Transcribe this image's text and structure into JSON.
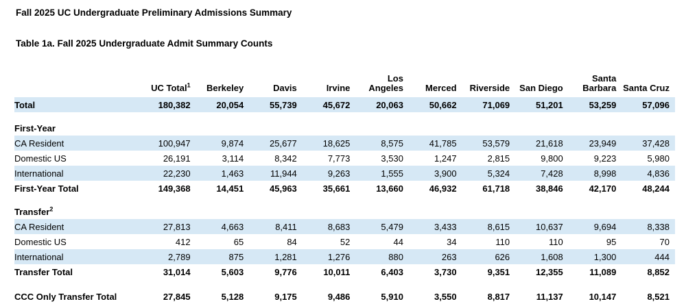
{
  "page": {
    "title": "Fall 2025 UC Undergraduate Preliminary Admissions Summary",
    "table_caption": "Table 1a. Fall 2025 Undergraduate Admit Summary Counts"
  },
  "colors": {
    "stripe_blue": "#d6e8f5",
    "text": "#000000",
    "background": "#ffffff"
  },
  "table": {
    "row_label_header": "",
    "columns": [
      {
        "label": "UC Total",
        "superscript": "1"
      },
      {
        "label": "Berkeley",
        "superscript": ""
      },
      {
        "label": "Davis",
        "superscript": ""
      },
      {
        "label": "Irvine",
        "superscript": ""
      },
      {
        "label": "Los Angeles",
        "superscript": ""
      },
      {
        "label": "Merced",
        "superscript": ""
      },
      {
        "label": "Riverside",
        "superscript": ""
      },
      {
        "label": "San Diego",
        "superscript": ""
      },
      {
        "label": "Santa Barbara",
        "superscript": ""
      },
      {
        "label": "Santa Cruz",
        "superscript": ""
      }
    ],
    "rows": [
      {
        "type": "data",
        "emphasis": "bold",
        "indent": 0,
        "stripe": true,
        "label": "Total",
        "superscript": "",
        "values": [
          "180,382",
          "20,054",
          "55,739",
          "45,672",
          "20,063",
          "50,662",
          "71,069",
          "51,201",
          "53,259",
          "57,096"
        ]
      },
      {
        "type": "spacer"
      },
      {
        "type": "section",
        "label": "First-Year",
        "superscript": ""
      },
      {
        "type": "data",
        "emphasis": "normal",
        "indent": 1,
        "stripe": true,
        "label": "CA Resident",
        "superscript": "",
        "values": [
          "100,947",
          "9,874",
          "25,677",
          "18,625",
          "8,575",
          "41,785",
          "53,579",
          "21,618",
          "23,949",
          "37,428"
        ]
      },
      {
        "type": "data",
        "emphasis": "normal",
        "indent": 1,
        "stripe": false,
        "label": "Domestic US",
        "superscript": "",
        "values": [
          "26,191",
          "3,114",
          "8,342",
          "7,773",
          "3,530",
          "1,247",
          "2,815",
          "9,800",
          "9,223",
          "5,980"
        ]
      },
      {
        "type": "data",
        "emphasis": "normal",
        "indent": 1,
        "stripe": true,
        "label": "International",
        "superscript": "",
        "values": [
          "22,230",
          "1,463",
          "11,944",
          "9,263",
          "1,555",
          "3,900",
          "5,324",
          "7,428",
          "8,998",
          "4,836"
        ]
      },
      {
        "type": "data",
        "emphasis": "bold",
        "indent": 2,
        "stripe": false,
        "label": "First-Year Total",
        "superscript": "",
        "values": [
          "149,368",
          "14,451",
          "45,963",
          "35,661",
          "13,660",
          "46,932",
          "61,718",
          "38,846",
          "42,170",
          "48,244"
        ]
      },
      {
        "type": "spacer"
      },
      {
        "type": "section",
        "label": "Transfer",
        "superscript": "2"
      },
      {
        "type": "data",
        "emphasis": "normal",
        "indent": 1,
        "stripe": true,
        "label": "CA Resident",
        "superscript": "",
        "values": [
          "27,813",
          "4,663",
          "8,411",
          "8,683",
          "5,479",
          "3,433",
          "8,615",
          "10,637",
          "9,694",
          "8,338"
        ]
      },
      {
        "type": "data",
        "emphasis": "normal",
        "indent": 1,
        "stripe": false,
        "label": "Domestic US",
        "superscript": "",
        "values": [
          "412",
          "65",
          "84",
          "52",
          "44",
          "34",
          "110",
          "110",
          "95",
          "70"
        ]
      },
      {
        "type": "data",
        "emphasis": "normal",
        "indent": 1,
        "stripe": true,
        "label": "International",
        "superscript": "",
        "values": [
          "2,789",
          "875",
          "1,281",
          "1,276",
          "880",
          "263",
          "626",
          "1,608",
          "1,300",
          "444"
        ]
      },
      {
        "type": "data",
        "emphasis": "bold",
        "indent": 2,
        "stripe": false,
        "label": "Transfer Total",
        "superscript": "",
        "values": [
          "31,014",
          "5,603",
          "9,776",
          "10,011",
          "6,403",
          "3,730",
          "9,351",
          "12,355",
          "11,089",
          "8,852"
        ]
      },
      {
        "type": "spacer"
      },
      {
        "type": "data",
        "emphasis": "bold",
        "indent": 0,
        "stripe": false,
        "last": true,
        "label": "CCC Only Transfer Total",
        "superscript": "",
        "values": [
          "27,845",
          "5,128",
          "9,175",
          "9,486",
          "5,910",
          "3,550",
          "8,817",
          "11,137",
          "10,147",
          "8,521"
        ]
      }
    ]
  }
}
